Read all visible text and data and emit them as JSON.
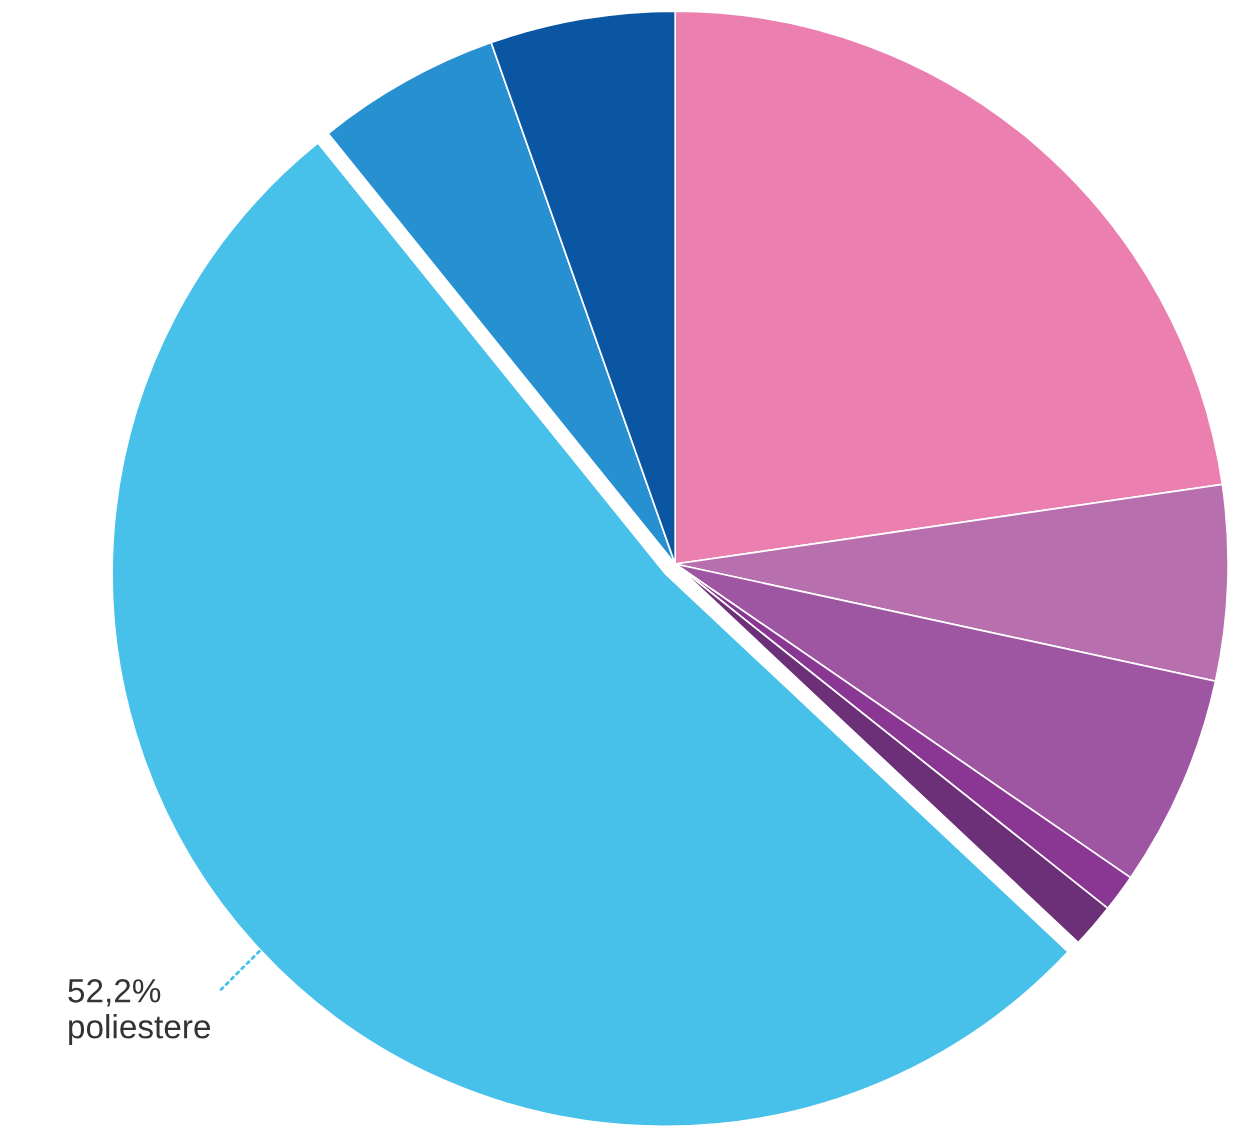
{
  "chart_data": {
    "type": "pie",
    "categories": [
      null,
      null,
      null,
      null,
      null,
      "poliestere",
      null,
      null
    ],
    "values": [
      22.7,
      5.7,
      6.2,
      1.1,
      1.3,
      52.2,
      5.4,
      5.4
    ],
    "value_labels": [
      null,
      null,
      null,
      null,
      null,
      "52,2%",
      null,
      null
    ],
    "colors": [
      "#eb7fb0",
      "#b86fae",
      "#9e56a3",
      "#8a3793",
      "#6c3078",
      "#48c1ea",
      "#2690d1",
      "#0a56a3"
    ]
  }
}
